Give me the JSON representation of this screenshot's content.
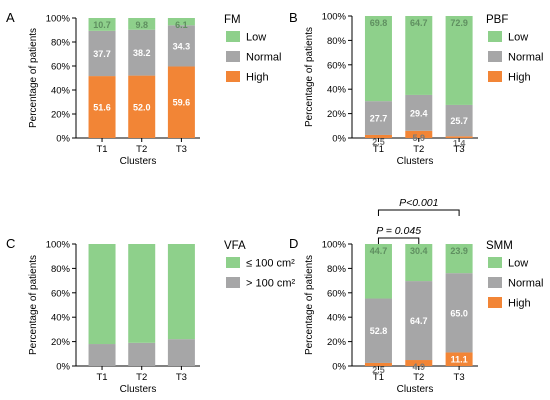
{
  "colors": {
    "low": "#8ED08B",
    "normal": "#A6A6A7",
    "high": "#F28536"
  },
  "chart_data": [
    {
      "type": "bar",
      "stacked": true,
      "panel": "A",
      "legend_title": "FM",
      "xlabel": "Clusters",
      "ylabel": "Percentage of patients",
      "ylim": [
        0,
        100
      ],
      "yticks": [
        "0%",
        "20%",
        "40%",
        "60%",
        "80%",
        "100%"
      ],
      "categories": [
        "T1",
        "T2",
        "T3"
      ],
      "series": [
        {
          "name": "High",
          "color": "#F28536",
          "values": [
            51.6,
            52.0,
            59.6
          ],
          "labels": [
            "51.6",
            "52.0",
            "59.6"
          ]
        },
        {
          "name": "Normal",
          "color": "#A6A6A7",
          "values": [
            37.7,
            38.2,
            34.3
          ],
          "labels": [
            "37.7",
            "38.2",
            "34.3"
          ]
        },
        {
          "name": "Low",
          "color": "#8ED08B",
          "values": [
            10.7,
            9.8,
            6.1
          ],
          "labels": [
            "10.7",
            "9.8",
            "6.1"
          ]
        }
      ],
      "legend_order": [
        "Low",
        "Normal",
        "High"
      ]
    },
    {
      "type": "bar",
      "stacked": true,
      "panel": "B",
      "legend_title": "PBF",
      "xlabel": "Clusters",
      "ylabel": "Percentage of patients",
      "ylim": [
        0,
        100
      ],
      "yticks": [
        "0%",
        "20%",
        "40%",
        "60%",
        "80%",
        "100%"
      ],
      "categories": [
        "T1",
        "T2",
        "T3"
      ],
      "series": [
        {
          "name": "High",
          "color": "#F28536",
          "values": [
            2.5,
            5.9,
            1.4
          ],
          "labels": [
            "2.5",
            "5.9",
            "1.4"
          ]
        },
        {
          "name": "Normal",
          "color": "#A6A6A7",
          "values": [
            27.7,
            29.4,
            25.7
          ],
          "labels": [
            "27.7",
            "29.4",
            "25.7"
          ]
        },
        {
          "name": "Low",
          "color": "#8ED08B",
          "values": [
            69.8,
            64.7,
            72.9
          ],
          "labels": [
            "69.8",
            "64.7",
            "72.9"
          ]
        }
      ],
      "legend_order": [
        "Low",
        "Normal",
        "High"
      ]
    },
    {
      "type": "bar",
      "stacked": true,
      "panel": "C",
      "legend_title": "VFA",
      "xlabel": "Clusters",
      "ylabel": "Percentage of patients",
      "ylim": [
        0,
        100
      ],
      "yticks": [
        "0%",
        "20%",
        "40%",
        "60%",
        "80%",
        "100%"
      ],
      "categories": [
        "T1",
        "T2",
        "T3"
      ],
      "series": [
        {
          "name": "> 100 cm²",
          "color": "#A6A6A7",
          "values": [
            18,
            19,
            22
          ],
          "labels": [
            "",
            "",
            ""
          ]
        },
        {
          "name": "≤ 100 cm²",
          "color": "#8ED08B",
          "values": [
            82,
            81,
            78
          ],
          "labels": [
            "",
            "",
            ""
          ]
        }
      ],
      "legend_order": [
        "≤ 100 cm²",
        "> 100 cm²"
      ]
    },
    {
      "type": "bar",
      "stacked": true,
      "panel": "D",
      "legend_title": "SMM",
      "xlabel": "Clusters",
      "ylabel": "Percentage of patients",
      "ylim": [
        0,
        100
      ],
      "yticks": [
        "0%",
        "20%",
        "40%",
        "60%",
        "80%",
        "100%"
      ],
      "categories": [
        "T1",
        "T2",
        "T3"
      ],
      "series": [
        {
          "name": "High",
          "color": "#F28536",
          "values": [
            2.5,
            4.9,
            11.1
          ],
          "labels": [
            "2.5",
            "4.9",
            "11.1"
          ]
        },
        {
          "name": "Normal",
          "color": "#A6A6A7",
          "values": [
            52.8,
            64.7,
            65.0
          ],
          "labels": [
            "52.8",
            "64.7",
            "65.0"
          ]
        },
        {
          "name": "Low",
          "color": "#8ED08B",
          "values": [
            44.7,
            30.4,
            23.9
          ],
          "labels": [
            "44.7",
            "30.4",
            "23.9"
          ]
        }
      ],
      "legend_order": [
        "Low",
        "Normal",
        "High"
      ],
      "annotations": [
        {
          "text": "P = 0.045",
          "from": "T1",
          "to": "T2"
        },
        {
          "text": "P<0.001",
          "from": "T1",
          "to": "T3"
        }
      ]
    }
  ]
}
